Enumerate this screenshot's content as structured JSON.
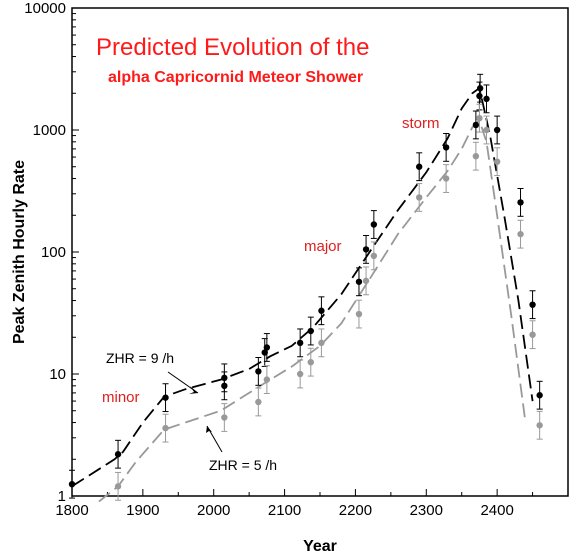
{
  "chart_data": {
    "type": "line",
    "title": "Predicted Evolution of the",
    "subtitle": "alpha Capricornid Meteor Shower",
    "xlabel": "Year",
    "ylabel": "Peak Zenith Hourly Rate",
    "xlim": [
      1800,
      2500
    ],
    "ylim": [
      1,
      10000
    ],
    "yscale": "log",
    "x_ticks": [
      "1800",
      "1900",
      "2000",
      "2100",
      "2200",
      "2300",
      "2400"
    ],
    "y_ticks": [
      "1",
      "10",
      "100",
      "1000",
      "10000"
    ],
    "grid": false,
    "colors": {
      "zhr9": "#000000",
      "zhr5": "#999999",
      "labels": "#e02020",
      "title": "#ff1a1a"
    },
    "category_labels": [
      "minor",
      "major",
      "storm"
    ],
    "annotations": [
      "ZHR = 9 /h",
      "ZHR = 5 /h"
    ],
    "series": [
      {
        "style": "dashed-line",
        "color": "#000000",
        "x": [
          1800,
          1860,
          1872,
          1900,
          1930,
          1960,
          2010,
          2050,
          2080,
          2110,
          2140,
          2180,
          2220,
          2260,
          2300,
          2330,
          2350,
          2365,
          2375,
          2390,
          2410,
          2430,
          2450
        ],
        "y": [
          1.2,
          2.0,
          2.3,
          4.0,
          6.5,
          7.5,
          9.0,
          11,
          14,
          17,
          24,
          45,
          100,
          220,
          450,
          850,
          1500,
          2000,
          2200,
          900,
          200,
          40,
          6
        ]
      },
      {
        "style": "dashed-line",
        "color": "#999999",
        "x": [
          1838,
          1865,
          1890,
          1930,
          1960,
          2010,
          2050,
          2080,
          2110,
          2150,
          2180,
          2220,
          2260,
          2300,
          2330,
          2350,
          2365,
          2375,
          2385,
          2400,
          2420,
          2440
        ],
        "y": [
          0.9,
          1.2,
          1.9,
          3.5,
          4.0,
          5.0,
          7.0,
          9.0,
          11.5,
          17,
          26,
          60,
          140,
          280,
          460,
          700,
          1050,
          1200,
          800,
          200,
          30,
          4
        ]
      },
      {
        "style": "points",
        "color": "#000000",
        "x": [
          1800,
          1865,
          1932,
          2015,
          2015,
          2063,
          2072,
          2075,
          2122,
          2137,
          2152,
          2205,
          2215,
          2226,
          2290,
          2328,
          2370,
          2375,
          2376,
          2385,
          2400,
          2433,
          2450,
          2460
        ],
        "y": [
          1.25,
          2.2,
          6.4,
          8.0,
          9.3,
          10.5,
          15.0,
          16.5,
          18.0,
          22.5,
          33.0,
          57.0,
          105,
          168,
          500,
          720,
          1100,
          1900,
          2200,
          1800,
          1000,
          255,
          37,
          6.7
        ]
      },
      {
        "style": "points",
        "color": "#999999",
        "x": [
          1865,
          1932,
          2015,
          2063,
          2075,
          2122,
          2137,
          2152,
          2205,
          2215,
          2226,
          2290,
          2328,
          2370,
          2375,
          2385,
          2400,
          2433,
          2450,
          2460
        ],
        "y": [
          1.2,
          3.6,
          4.4,
          5.9,
          9.0,
          10.0,
          12.5,
          18.0,
          31.0,
          58.0,
          93.0,
          280,
          400,
          610,
          1250,
          1000,
          550,
          140,
          21,
          3.8
        ]
      }
    ]
  }
}
